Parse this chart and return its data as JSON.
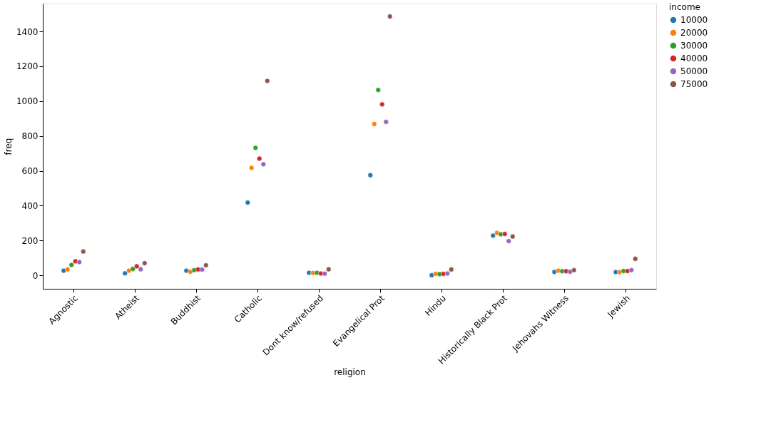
{
  "chart_data": {
    "type": "scatter",
    "xlabel": "religion",
    "ylabel": "freq",
    "legend_title": "income",
    "categories": [
      "Agnostic",
      "Atheist",
      "Buddhist",
      "Catholic",
      "Dont know/refused",
      "Evangelical Prot",
      "Hindu",
      "Historically Black Prot",
      "Jehovahs Witness",
      "Jewish"
    ],
    "series": [
      {
        "name": "10000",
        "color": "#1f77b4",
        "values": [
          27,
          12,
          27,
          418,
          15,
          575,
          1,
          228,
          20,
          19
        ]
      },
      {
        "name": "20000",
        "color": "#ff7f0e",
        "values": [
          34,
          27,
          21,
          617,
          14,
          869,
          9,
          244,
          27,
          19
        ]
      },
      {
        "name": "30000",
        "color": "#2ca02c",
        "values": [
          60,
          37,
          30,
          732,
          15,
          1064,
          7,
          236,
          24,
          25
        ]
      },
      {
        "name": "40000",
        "color": "#d62728",
        "values": [
          81,
          52,
          34,
          670,
          11,
          982,
          9,
          238,
          24,
          25
        ]
      },
      {
        "name": "50000",
        "color": "#9467bd",
        "values": [
          76,
          35,
          33,
          638,
          10,
          881,
          11,
          197,
          21,
          30
        ]
      },
      {
        "name": "75000",
        "color": "#8c564b",
        "values": [
          137,
          70,
          58,
          1116,
          35,
          1486,
          34,
          223,
          30,
          95
        ]
      }
    ],
    "ylim": [
      -77,
      1560
    ],
    "yticks": [
      0,
      200,
      400,
      600,
      800,
      1000,
      1200,
      1400
    ],
    "grid": false,
    "legend": "right",
    "marker": "circle"
  }
}
